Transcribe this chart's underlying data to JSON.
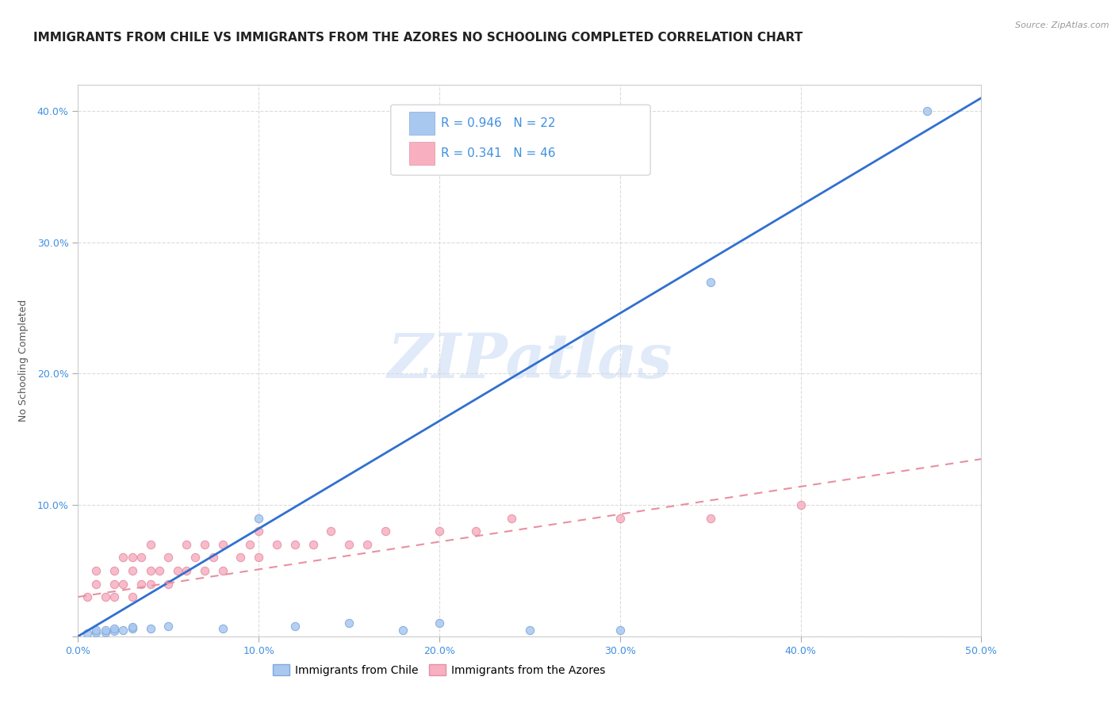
{
  "title": "IMMIGRANTS FROM CHILE VS IMMIGRANTS FROM THE AZORES NO SCHOOLING COMPLETED CORRELATION CHART",
  "source": "Source: ZipAtlas.com",
  "ylabel": "No Schooling Completed",
  "xlabel": "",
  "watermark": "ZIPatlas",
  "xlim": [
    0.0,
    0.5
  ],
  "ylim": [
    0.0,
    0.42
  ],
  "xticks": [
    0.0,
    0.1,
    0.2,
    0.3,
    0.4,
    0.5
  ],
  "yticks": [
    0.0,
    0.1,
    0.2,
    0.3,
    0.4
  ],
  "xticklabels": [
    "0.0%",
    "10.0%",
    "20.0%",
    "30.0%",
    "40.0%",
    "50.0%"
  ],
  "yticklabels": [
    "",
    "10.0%",
    "20.0%",
    "30.0%",
    "40.0%"
  ],
  "legend_r_chile": "0.946",
  "legend_n_chile": "22",
  "legend_r_azores": "0.341",
  "legend_n_azores": "46",
  "chile_color": "#a8c8f0",
  "azores_color": "#f8b0c0",
  "chile_line_color": "#3070d0",
  "azores_line_color": "#e890a0",
  "label_color": "#4090e0",
  "chile_scatter_x": [
    0.005,
    0.01,
    0.01,
    0.015,
    0.015,
    0.02,
    0.02,
    0.025,
    0.03,
    0.03,
    0.04,
    0.05,
    0.1,
    0.15,
    0.2,
    0.25,
    0.18,
    0.12,
    0.08,
    0.3,
    0.35,
    0.47
  ],
  "chile_scatter_y": [
    0.002,
    0.003,
    0.005,
    0.003,
    0.005,
    0.004,
    0.006,
    0.005,
    0.006,
    0.007,
    0.006,
    0.008,
    0.09,
    0.01,
    0.01,
    0.005,
    0.005,
    0.008,
    0.006,
    0.005,
    0.27,
    0.4
  ],
  "azores_scatter_x": [
    0.005,
    0.01,
    0.01,
    0.015,
    0.02,
    0.02,
    0.02,
    0.025,
    0.025,
    0.03,
    0.03,
    0.03,
    0.035,
    0.035,
    0.04,
    0.04,
    0.04,
    0.045,
    0.05,
    0.05,
    0.055,
    0.06,
    0.06,
    0.065,
    0.07,
    0.07,
    0.075,
    0.08,
    0.08,
    0.09,
    0.095,
    0.1,
    0.1,
    0.11,
    0.12,
    0.13,
    0.14,
    0.15,
    0.16,
    0.17,
    0.2,
    0.22,
    0.24,
    0.3,
    0.35,
    0.4
  ],
  "azores_scatter_y": [
    0.03,
    0.04,
    0.05,
    0.03,
    0.03,
    0.04,
    0.05,
    0.04,
    0.06,
    0.03,
    0.05,
    0.06,
    0.04,
    0.06,
    0.04,
    0.05,
    0.07,
    0.05,
    0.04,
    0.06,
    0.05,
    0.05,
    0.07,
    0.06,
    0.05,
    0.07,
    0.06,
    0.05,
    0.07,
    0.06,
    0.07,
    0.06,
    0.08,
    0.07,
    0.07,
    0.07,
    0.08,
    0.07,
    0.07,
    0.08,
    0.08,
    0.08,
    0.09,
    0.09,
    0.09,
    0.1
  ],
  "chile_line_x": [
    0.0,
    0.5
  ],
  "chile_line_y": [
    0.0,
    0.41
  ],
  "azores_line_x": [
    0.0,
    0.5
  ],
  "azores_line_y": [
    0.03,
    0.135
  ],
  "grid_color": "#d8d8d8",
  "bg_color": "#ffffff",
  "title_fontsize": 11,
  "axis_fontsize": 9,
  "tick_color": "#4090e0"
}
